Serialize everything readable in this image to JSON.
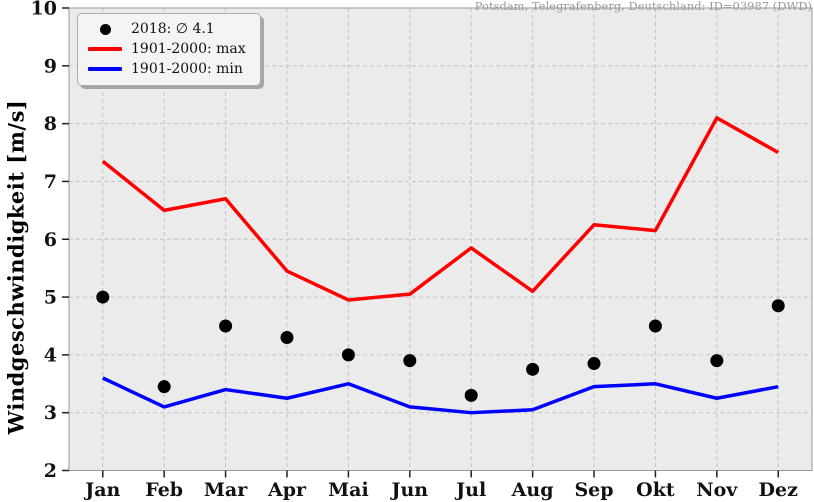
{
  "title": "Potsdam, Telegrafenberg, Deutschland: ID=03987 (DWD)",
  "ylabel": "Windgeschwindigkeit [m/s]",
  "legend": {
    "items": [
      {
        "label": "2018: ∅ 4.1",
        "marker": "dot",
        "color": "#000000"
      },
      {
        "label": "1901-2000: max",
        "marker": "line",
        "color": "#ff0000"
      },
      {
        "label": "1901-2000: min",
        "marker": "line",
        "color": "#0000ff"
      }
    ]
  },
  "chart_data": {
    "type": "line",
    "title": "Potsdam, Telegrafenberg, Deutschland: ID=03987 (DWD)",
    "xlabel": "",
    "ylabel": "Windgeschwindigkeit [m/s]",
    "categories": [
      "Jan",
      "Feb",
      "Mar",
      "Apr",
      "Mai",
      "Jun",
      "Jul",
      "Aug",
      "Sep",
      "Okt",
      "Nov",
      "Dez"
    ],
    "series": [
      {
        "name": "2018: ∅ 4.1",
        "type": "scatter",
        "color": "#000000",
        "values": [
          5.0,
          3.45,
          4.5,
          4.3,
          4.0,
          3.9,
          3.3,
          3.75,
          3.85,
          4.5,
          3.9,
          4.85
        ]
      },
      {
        "name": "1901-2000: max",
        "type": "line",
        "color": "#ff0000",
        "values": [
          7.35,
          6.5,
          6.7,
          5.45,
          4.95,
          5.05,
          5.85,
          5.1,
          6.25,
          6.15,
          8.1,
          7.5
        ]
      },
      {
        "name": "1901-2000: min",
        "type": "line",
        "color": "#0000ff",
        "values": [
          3.6,
          3.1,
          3.4,
          3.25,
          3.5,
          3.1,
          3.0,
          3.05,
          3.45,
          3.5,
          3.25,
          3.45
        ]
      }
    ],
    "mean_2018": 4.1,
    "ylim": [
      2,
      10
    ],
    "yticks": [
      2,
      3,
      4,
      5,
      6,
      7,
      8,
      9,
      10
    ],
    "grid": true,
    "grid_style": "dashed",
    "legend_position": "upper-left"
  },
  "colors": {
    "plot_background": "#ebebeb",
    "figure_background": "#ffffff",
    "grid": "#c3c3c3",
    "spine": "#9a9a9a",
    "tick": "#222222",
    "tick_label": "#111111",
    "title_text": "#999999",
    "max_line": "#ff0000",
    "min_line": "#0000ff",
    "dots": "#000000"
  }
}
